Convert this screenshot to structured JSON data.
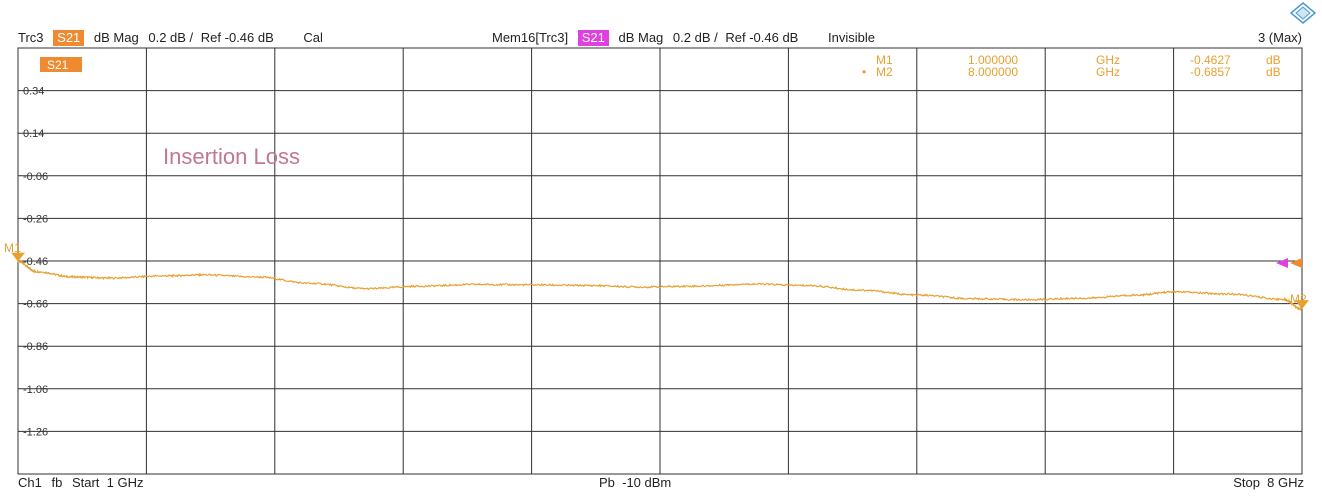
{
  "header": {
    "trace_name": "Trc3",
    "trace_param": "S21",
    "trace_format": "dB Mag",
    "trace_scale": "0.2 dB /",
    "trace_ref": "Ref -0.46 dB",
    "trace_cal": "Cal",
    "mem_name": "Mem16[Trc3]",
    "mem_param": "S21",
    "mem_format": "dB Mag",
    "mem_scale": "0.2 dB /",
    "mem_ref": "Ref -0.46 dB",
    "mem_state": "Invisible",
    "max_label": "3 (Max)"
  },
  "colors": {
    "trace": "#e8a030",
    "trace_badge": "#f08a30",
    "mem_badge": "#e040e0",
    "grid": "#303030",
    "annotation": "#c07890"
  },
  "plot": {
    "trace_badge": "S21",
    "annotation": "Insertion Loss"
  },
  "markers": {
    "m1_label": "M1",
    "m2_label": "M2",
    "table": [
      {
        "name": "M1",
        "freq": "1.000000",
        "unit": "GHz",
        "value": "-0.4627",
        "vunit": "dB"
      },
      {
        "name": "M2",
        "freq": "8.000000",
        "unit": "GHz",
        "value": "-0.6857",
        "vunit": "dB"
      }
    ]
  },
  "footer": {
    "channel": "Ch1",
    "mode": "fb",
    "start": "Start  1 GHz",
    "power": "Pb  -10 dBm",
    "stop": "Stop  8 GHz"
  },
  "chart_data": {
    "type": "line",
    "xlabel": "",
    "ylabel": "",
    "xlim": [
      1,
      8
    ],
    "ylim": [
      -1.46,
      0.54
    ],
    "y_ticks": [
      0.34,
      0.14,
      -0.06,
      -0.26,
      -0.46,
      -0.66,
      -0.86,
      -1.06,
      -1.26
    ],
    "y_tick_labels": [
      "0.34",
      "0.14",
      "-0.06",
      "-0.26",
      "-0.46",
      "-0.66",
      "-0.86",
      "-1.06",
      "-1.26"
    ],
    "x_divisions": 10,
    "grid": true,
    "series": [
      {
        "name": "S21",
        "x": [
          1.0,
          1.1,
          1.3,
          1.5,
          1.8,
          2.0,
          2.3,
          2.6,
          2.9,
          3.2,
          3.5,
          3.8,
          4.1,
          4.4,
          4.7,
          5.0,
          5.3,
          5.6,
          5.9,
          6.2,
          6.5,
          6.8,
          7.1,
          7.3,
          7.6,
          7.9,
          8.0
        ],
        "y": [
          -0.4627,
          -0.51,
          -0.535,
          -0.54,
          -0.53,
          -0.525,
          -0.535,
          -0.565,
          -0.59,
          -0.578,
          -0.57,
          -0.572,
          -0.575,
          -0.582,
          -0.578,
          -0.568,
          -0.575,
          -0.597,
          -0.62,
          -0.637,
          -0.642,
          -0.635,
          -0.62,
          -0.605,
          -0.615,
          -0.64,
          -0.6857
        ]
      }
    ]
  }
}
